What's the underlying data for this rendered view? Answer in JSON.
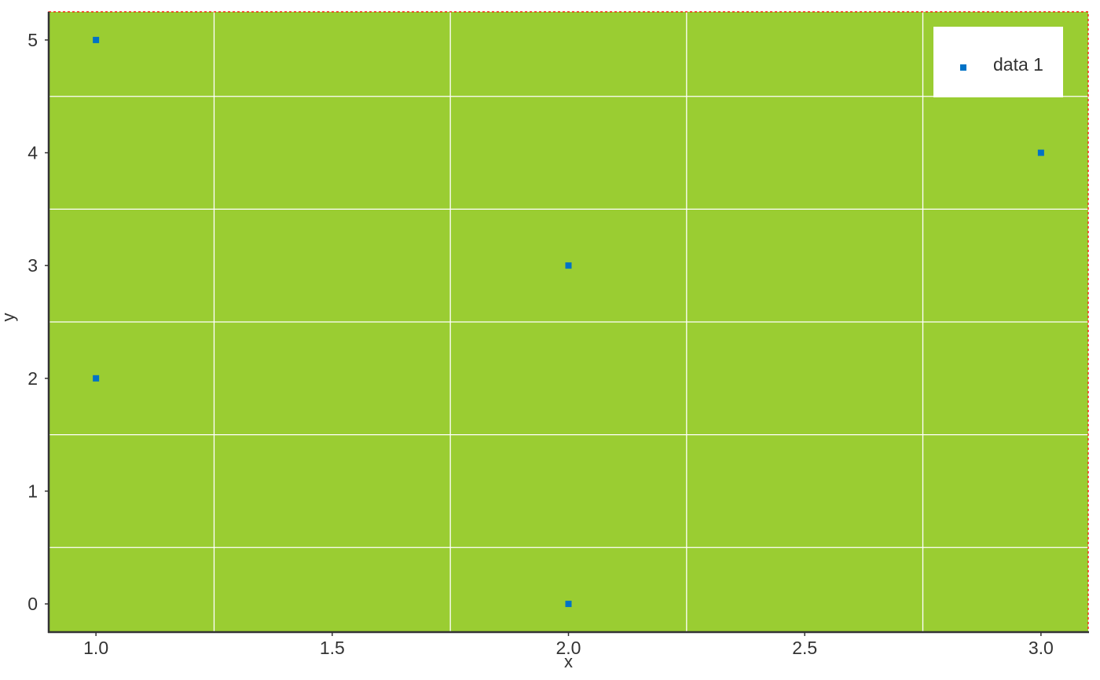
{
  "chart_data": {
    "type": "scatter",
    "title": "",
    "xlabel": "x",
    "ylabel": "y",
    "xlim": [
      0.9,
      3.1
    ],
    "ylim": [
      -0.25,
      5.25
    ],
    "xticks": [
      "1.0",
      "1.5",
      "2.0",
      "2.5",
      "3.0"
    ],
    "yticks": [
      "0",
      "1",
      "2",
      "3",
      "4",
      "5"
    ],
    "grid": true,
    "legend_position": "top-right",
    "series": [
      {
        "name": "data 1",
        "marker": "square",
        "x": [
          1,
          1,
          2,
          2,
          3
        ],
        "y": [
          5,
          2,
          3,
          0,
          4
        ]
      }
    ]
  },
  "colors": {
    "plot_background": "#9acd32",
    "grid": "#ffffff",
    "marker": "#0072c6",
    "axis": "#333333",
    "border": "#ff0000",
    "legend_background": "#ffffff"
  }
}
